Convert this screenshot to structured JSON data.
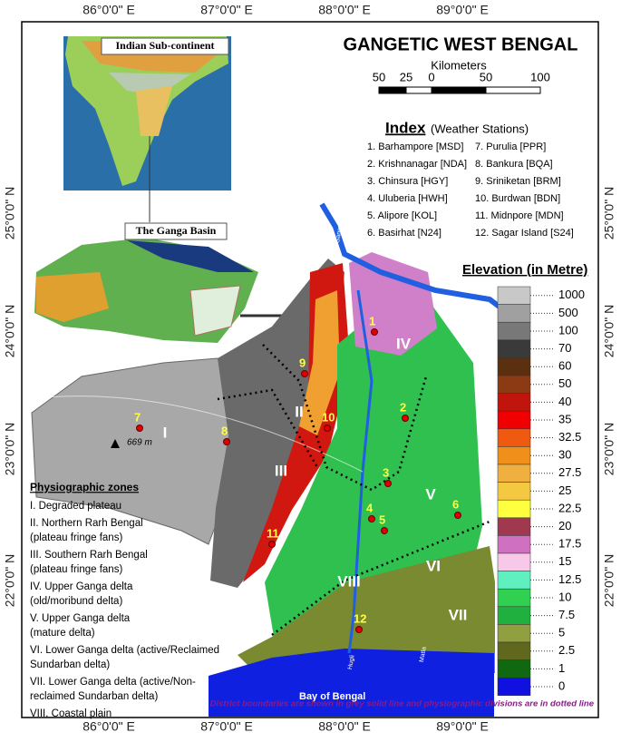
{
  "title": "GANGETIC WEST BENGAL",
  "scale_bar": {
    "label": "Kilometers",
    "ticks": [
      "50",
      "25",
      "0",
      "50",
      "100"
    ]
  },
  "coordinates": {
    "longitudes": [
      "86°0'0\" E",
      "87°0'0\" E",
      "88°0'0\" E",
      "89°0'0\" E"
    ],
    "latitudes": [
      "25°0'0\" N",
      "24°0'0\" N",
      "23°0'0\" N",
      "22°0'0\" N"
    ]
  },
  "insets": {
    "subcontinent": "Indian Sub-continent",
    "basin": "The Ganga Basin"
  },
  "index": {
    "title": "Index",
    "subtitle": "(Weather Stations)",
    "stations": [
      "1. Barhampore [MSD]",
      "2. Krishnanagar [NDA]",
      "3. Chinsura [HGY]",
      "4. Uluberia [HWH]",
      "5. Alipore [KOL]",
      "6. Basirhat [N24]",
      "7. Purulia [PPR]",
      "8. Bankura [BQA]",
      "9. Sriniketan [BRM]",
      "10. Burdwan [BDN]",
      "11. Midnpore [MDN]",
      "12. Sagar Island [S24]"
    ]
  },
  "elevation": {
    "title": "Elevation (in Metre)",
    "levels": [
      {
        "label": "1000",
        "color": "#c8c8c8"
      },
      {
        "label": "500",
        "color": "#a0a0a0"
      },
      {
        "label": "100",
        "color": "#787878"
      },
      {
        "label": "70",
        "color": "#3a3a3a"
      },
      {
        "label": "60",
        "color": "#5a3010"
      },
      {
        "label": "50",
        "color": "#8b3a14"
      },
      {
        "label": "40",
        "color": "#c0140c"
      },
      {
        "label": "35",
        "color": "#f00000"
      },
      {
        "label": "32.5",
        "color": "#f05a10"
      },
      {
        "label": "30",
        "color": "#f0901a"
      },
      {
        "label": "27.5",
        "color": "#f0b040"
      },
      {
        "label": "25",
        "color": "#f5c842"
      },
      {
        "label": "22.5",
        "color": "#ffff40"
      },
      {
        "label": "20",
        "color": "#a03850"
      },
      {
        "label": "17.5",
        "color": "#d070c0"
      },
      {
        "label": "15",
        "color": "#f8c8e8"
      },
      {
        "label": "12.5",
        "color": "#60f0c0"
      },
      {
        "label": "10",
        "color": "#30d050"
      },
      {
        "label": "7.5",
        "color": "#20b040"
      },
      {
        "label": "5",
        "color": "#90a040"
      },
      {
        "label": "2.5",
        "color": "#606820"
      },
      {
        "label": "1",
        "color": "#106810"
      },
      {
        "label": "0",
        "color": "#1010e0"
      }
    ]
  },
  "zones": {
    "title": "Physiographic zones",
    "items": [
      [
        "I. Degraded plateau"
      ],
      [
        "II. Northern Rarh Bengal",
        "(plateau fringe fans)"
      ],
      [
        "III. Southern Rarh Bengal",
        "(plateau fringe fans)"
      ],
      [
        "IV. Upper Ganga delta",
        "(old/moribund delta)"
      ],
      [
        "V. Upper Ganga delta",
        "(mature delta)"
      ],
      [
        "VI. Lower Ganga delta (active/Reclaimed",
        "Sundarban delta)"
      ],
      [
        "VII. Lower Ganga delta (active/Non-",
        "reclaimed Sundarban delta)"
      ],
      [
        "VIII. Coastal plain"
      ]
    ]
  },
  "map_labels": {
    "zones": [
      "I",
      "II",
      "III",
      "IV",
      "V",
      "VI",
      "VII",
      "VIII"
    ],
    "stations": [
      "1",
      "2",
      "3",
      "4",
      "5",
      "6",
      "7",
      "8",
      "9",
      "10",
      "11",
      "12"
    ],
    "peak": "669 m",
    "sea": "Bay of Bengal",
    "rivers": [
      "Ganga",
      "Hugli",
      "Matla"
    ]
  },
  "footnote": "District boundaries are shown in grey solid line and physiographic divisions are in dotted line"
}
